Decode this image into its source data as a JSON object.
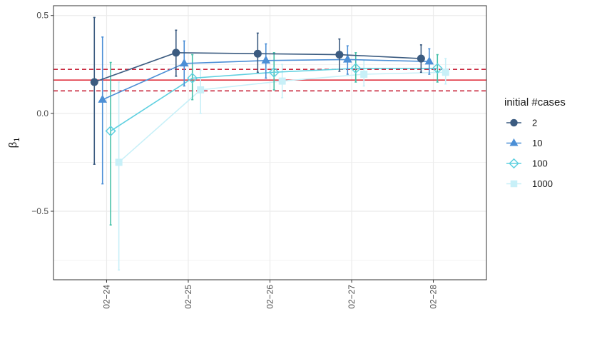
{
  "chart_data": {
    "type": "line",
    "title": "",
    "xlabel": "",
    "ylabel": "β",
    "ylabel_sub": "1",
    "categories": [
      "02−24",
      "02−25",
      "02−26",
      "02−27",
      "02−28"
    ],
    "y_ticks": [
      {
        "value": -0.5,
        "label": "−0.5"
      },
      {
        "value": 0.0,
        "label": "0.0"
      },
      {
        "value": 0.5,
        "label": "0.5"
      }
    ],
    "ylim": [
      -0.85,
      0.55
    ],
    "grid": true,
    "legend": {
      "title": "initial #cases",
      "position": "right"
    },
    "hlines": [
      {
        "y": 0.17,
        "style": "solid",
        "color": "#e0313e"
      },
      {
        "y": 0.225,
        "style": "dashed",
        "color": "#c9283e"
      },
      {
        "y": 0.115,
        "style": "dashed",
        "color": "#c9283e"
      }
    ],
    "series": [
      {
        "name": "2",
        "marker": "circle",
        "color": "#3b5b80",
        "offset": -0.15,
        "values": [
          0.16,
          0.31,
          0.305,
          0.3,
          0.28
        ],
        "lower": [
          -0.26,
          0.19,
          0.21,
          0.215,
          0.21
        ],
        "upper": [
          0.49,
          0.425,
          0.41,
          0.38,
          0.35
        ]
      },
      {
        "name": "10",
        "marker": "triangle",
        "color": "#4c8fd6",
        "offset": -0.05,
        "values": [
          0.07,
          0.255,
          0.27,
          0.275,
          0.265
        ],
        "lower": [
          -0.36,
          0.14,
          0.18,
          0.2,
          0.2
        ],
        "upper": [
          0.39,
          0.37,
          0.355,
          0.345,
          0.33
        ]
      },
      {
        "name": "100",
        "marker": "diamond",
        "color": "#5fd0e0",
        "offset": 0.05,
        "values": [
          -0.09,
          0.18,
          0.21,
          0.23,
          0.23
        ],
        "lower": [
          -0.57,
          0.07,
          0.12,
          0.16,
          0.16
        ],
        "upper": [
          0.26,
          0.3,
          0.31,
          0.31,
          0.3
        ],
        "error_color": "#45c0a8"
      },
      {
        "name": "1000",
        "marker": "square",
        "color": "#c8f0f8",
        "offset": 0.15,
        "values": [
          -0.25,
          0.12,
          0.165,
          0.2,
          0.21
        ],
        "lower": [
          -0.8,
          0.0,
          0.08,
          0.14,
          0.15
        ],
        "upper": [
          0.16,
          0.22,
          0.25,
          0.27,
          0.28
        ]
      }
    ]
  }
}
